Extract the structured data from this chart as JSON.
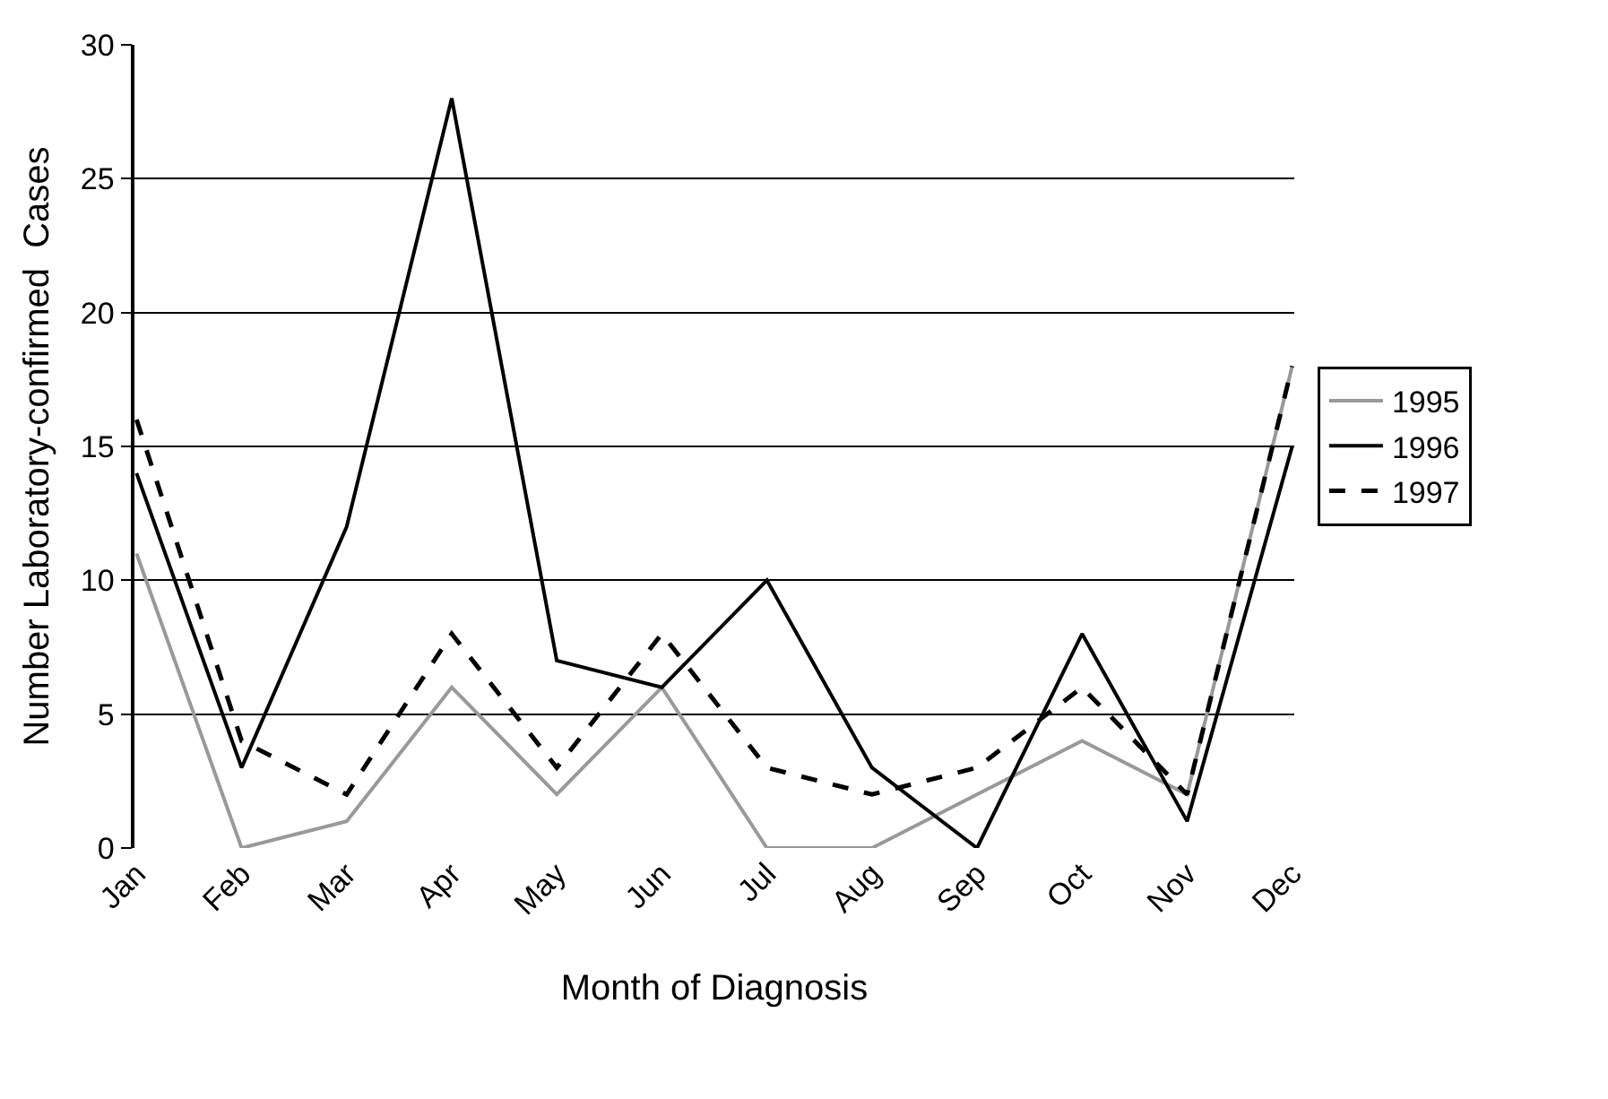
{
  "chart_data": {
    "type": "line",
    "xlabel": "Month of Diagnosis",
    "ylabel": "Number Laboratory-confirmed  Cases",
    "categories": [
      "Jan",
      "Feb",
      "Mar",
      "Apr",
      "May",
      "Jun",
      "Jul",
      "Aug",
      "Sep",
      "Oct",
      "Nov",
      "Dec"
    ],
    "series": [
      {
        "name": "1995",
        "color": "#999999",
        "line_style": "solid",
        "values": [
          11,
          0,
          1,
          6,
          2,
          6,
          0,
          0,
          2,
          4,
          2,
          18
        ]
      },
      {
        "name": "1996",
        "color": "#000000",
        "line_style": "solid",
        "values": [
          14,
          3,
          12,
          28,
          7,
          6,
          10,
          3,
          0,
          8,
          1,
          15
        ]
      },
      {
        "name": "1997",
        "color": "#000000",
        "line_style": "dashed",
        "values": [
          16,
          4,
          2,
          8,
          3,
          8,
          3,
          2,
          3,
          6,
          2,
          18
        ]
      }
    ],
    "ylim": [
      0,
      30
    ],
    "yticks": [
      0,
      5,
      10,
      15,
      20,
      25,
      30
    ],
    "grid": "y",
    "legend": "right",
    "marker": "none"
  }
}
